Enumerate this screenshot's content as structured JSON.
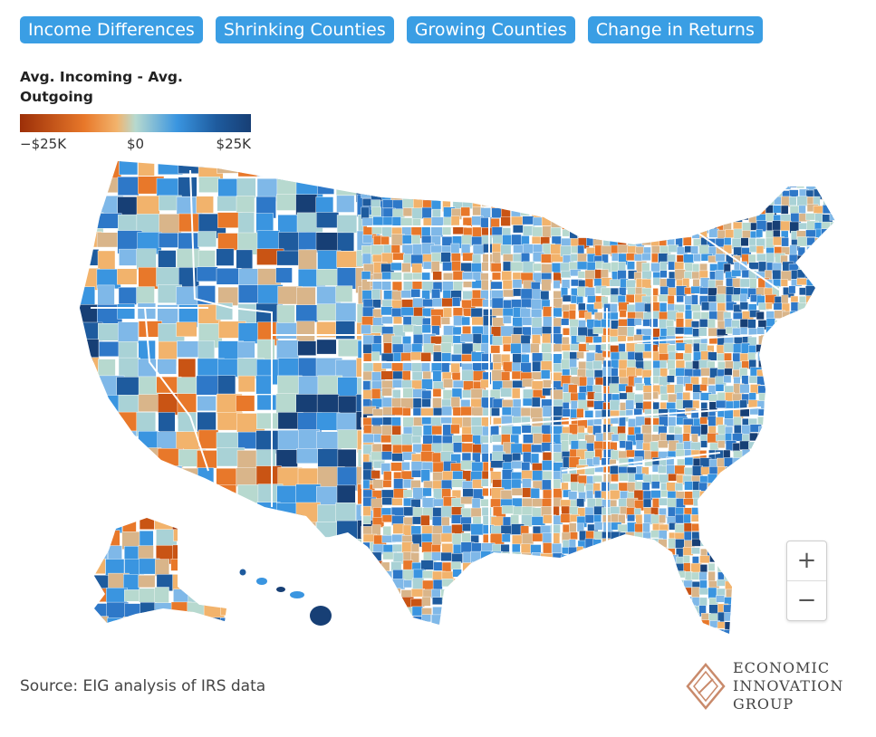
{
  "tabs": [
    {
      "label": "Income Differences"
    },
    {
      "label": "Shrinking Counties"
    },
    {
      "label": "Growing Counties"
    },
    {
      "label": "Change in Returns"
    }
  ],
  "legend": {
    "title": "Avg. Incoming - Avg. Outgoing",
    "min_label": "−$25K",
    "mid_label": "$0",
    "max_label": "$25K",
    "colors": [
      "#9c2f08",
      "#e8782a",
      "#f2b36c",
      "#b7d9cf",
      "#3a95e0",
      "#1e5b9e",
      "#173f75"
    ]
  },
  "map": {
    "subject": "United States counties choropleth",
    "regions": [
      "contiguous-us",
      "alaska",
      "hawaii"
    ]
  },
  "zoom": {
    "in_label": "+",
    "out_label": "−"
  },
  "source": "Source: EIG analysis of IRS data",
  "logo": {
    "line1": "ECONOMIC",
    "line2": "INNOVATION",
    "line3": "GROUP",
    "color": "#c98a6b"
  }
}
